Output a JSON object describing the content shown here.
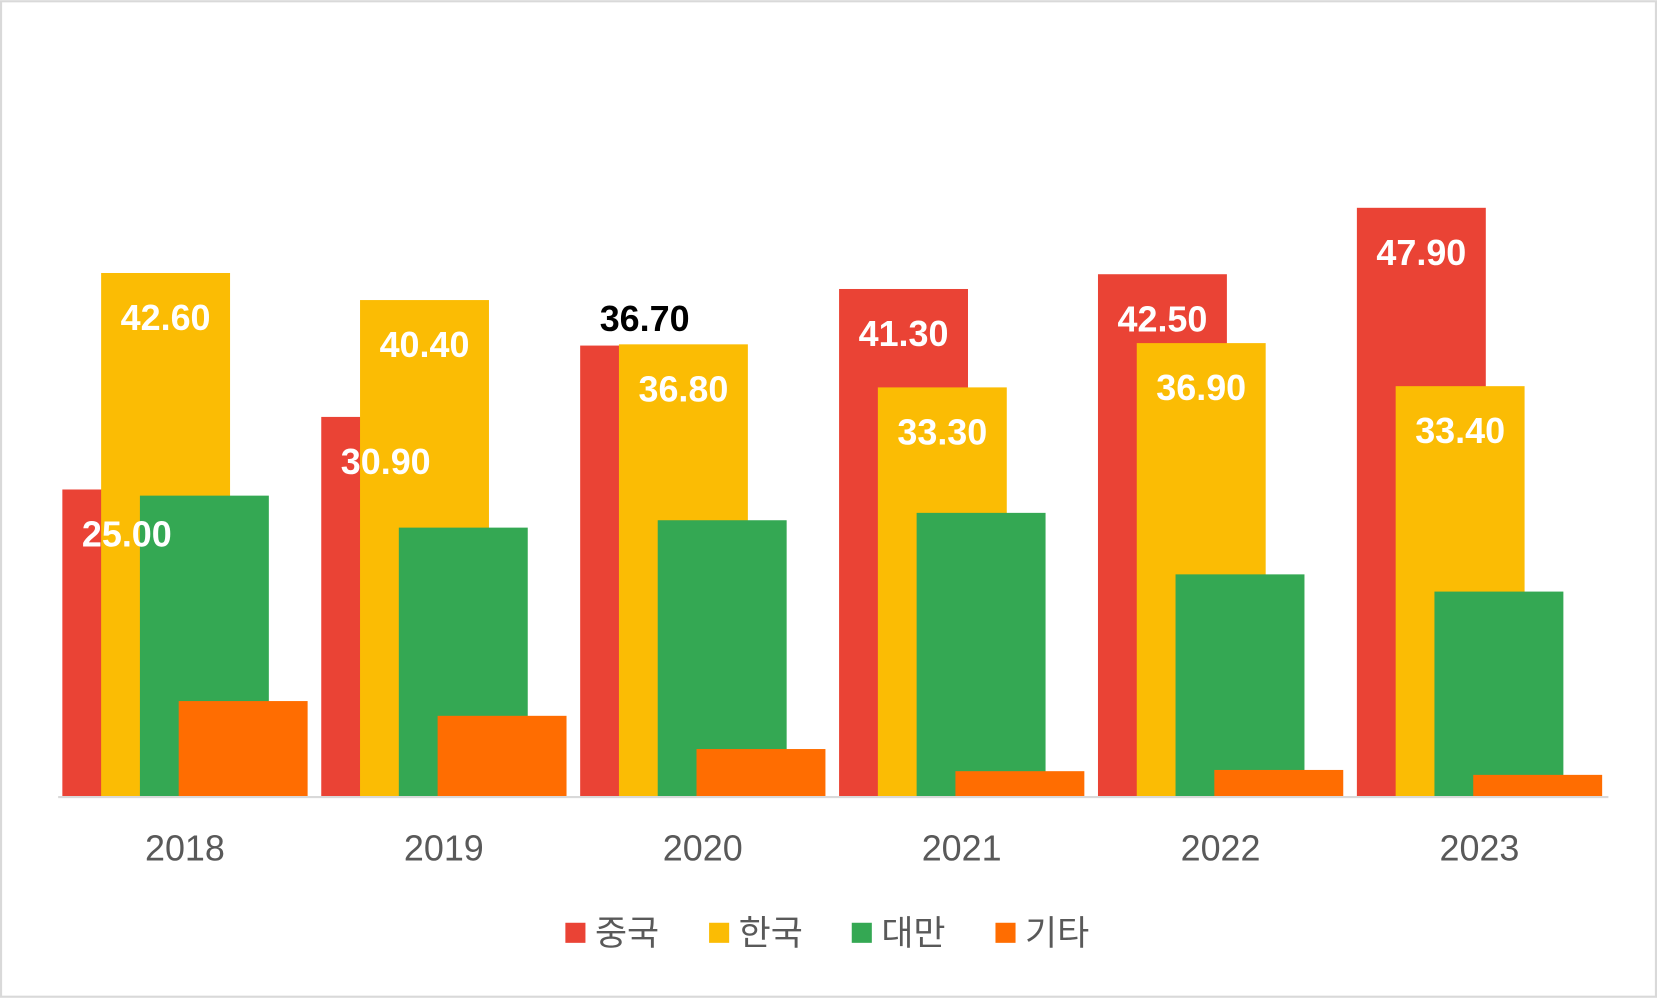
{
  "chart_data": {
    "type": "bar",
    "categories": [
      "2018",
      "2019",
      "2020",
      "2021",
      "2022",
      "2023"
    ],
    "series": [
      {
        "name": "중국",
        "color": "#EA4335",
        "values": [
          25.0,
          30.9,
          36.7,
          41.3,
          42.5,
          47.9
        ],
        "labels": [
          "25.00",
          "30.90",
          "36.70",
          "41.30",
          "42.50",
          "47.90"
        ]
      },
      {
        "name": "한국",
        "color": "#FBBC04",
        "values": [
          42.6,
          40.4,
          36.8,
          33.3,
          36.9,
          33.4
        ],
        "labels": [
          "42.60",
          "40.40",
          "36.80",
          "33.30",
          "36.90",
          "33.40"
        ]
      },
      {
        "name": "대만",
        "color": "#34A853",
        "values": [
          24.5,
          21.9,
          22.5,
          23.1,
          18.1,
          16.7
        ]
      },
      {
        "name": "기타",
        "color": "#FF6D01",
        "values": [
          7.8,
          6.6,
          3.9,
          2.1,
          2.2,
          1.8
        ]
      }
    ],
    "ylim": [
      0,
      64
    ],
    "grid": false,
    "legend": "bottom",
    "xlabel": "",
    "ylabel": ""
  }
}
